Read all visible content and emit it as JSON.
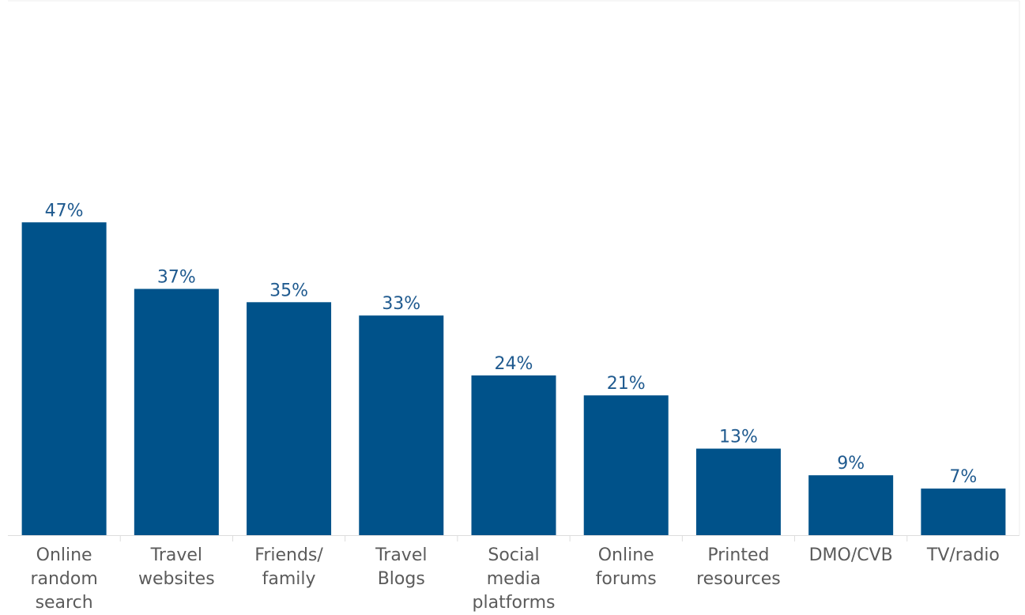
{
  "chart_data": {
    "type": "bar",
    "categories": [
      "Online random search",
      "Travel websites",
      "Friends/ family",
      "Travel Blogs",
      "Social media platforms",
      "Online forums",
      "Printed resources",
      "DMO/CVB",
      "TV/radio"
    ],
    "category_lines": [
      [
        "Online",
        "random",
        "search"
      ],
      [
        "Travel",
        "websites"
      ],
      [
        "Friends/",
        "family"
      ],
      [
        "Travel",
        "Blogs"
      ],
      [
        "Social",
        "media",
        "platforms"
      ],
      [
        "Online",
        "forums"
      ],
      [
        "Printed",
        "resources"
      ],
      [
        "DMO/CVB"
      ],
      [
        "TV/radio"
      ]
    ],
    "values": [
      47,
      37,
      35,
      33,
      24,
      21,
      13,
      9,
      7
    ],
    "data_labels": [
      "47%",
      "37%",
      "35%",
      "33%",
      "24%",
      "21%",
      "13%",
      "9%",
      "7%"
    ],
    "ylim": [
      0,
      80
    ],
    "grid": false,
    "legend": "none",
    "colors": {
      "bar": "#00528a",
      "data_label": "#1f5a8f",
      "axis_text": "#5b5b5b",
      "axis_line": "#dddddd",
      "frame_line": "#eeeeee"
    }
  }
}
